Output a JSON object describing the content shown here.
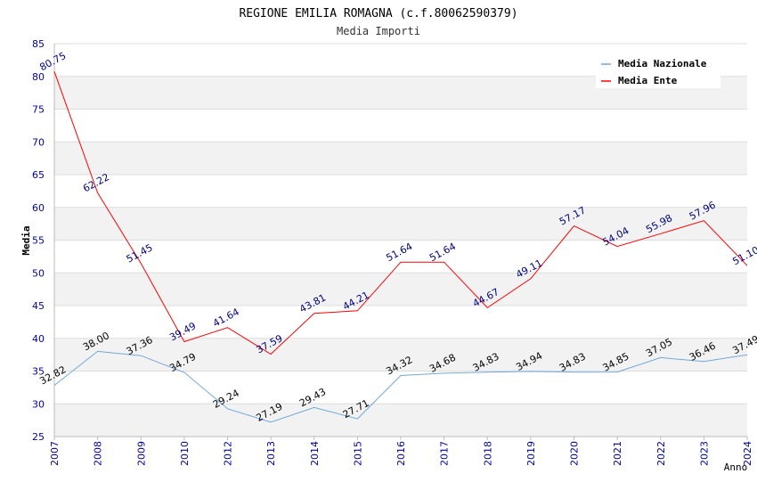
{
  "chart_data": {
    "type": "line",
    "title": "REGIONE EMILIA ROMAGNA (c.f.80062590379)",
    "subtitle": "Media Importi",
    "xlabel": "Anno",
    "ylabel": "Media",
    "ylim": [
      25,
      85
    ],
    "yticks": [
      25,
      30,
      35,
      40,
      45,
      50,
      55,
      60,
      65,
      70,
      75,
      80,
      85
    ],
    "categories": [
      "2007",
      "2008",
      "2009",
      "2010",
      "2012",
      "2013",
      "2014",
      "2015",
      "2016",
      "2017",
      "2018",
      "2019",
      "2020",
      "2021",
      "2022",
      "2023",
      "2024"
    ],
    "legend_position": "top-right",
    "grid": true,
    "series": [
      {
        "name": "Media Nazionale",
        "color": "#6fa8dc",
        "label_color": "#000000",
        "values": [
          32.82,
          38.0,
          37.36,
          34.79,
          29.24,
          27.19,
          29.43,
          27.71,
          34.32,
          34.68,
          34.83,
          34.94,
          34.83,
          34.85,
          37.05,
          36.46,
          37.49
        ],
        "labels": [
          "32.82",
          "38.00",
          "37.36",
          "34.79",
          "29.24",
          "27.19",
          "29.43",
          "27.71",
          "34.32",
          "34.68",
          "34.83",
          "34.94",
          "34.83",
          "34.85",
          "37.05",
          "36.46",
          "37.49"
        ]
      },
      {
        "name": "Media Ente",
        "color": "#ff0000",
        "label_color": "#000080",
        "values": [
          80.75,
          62.22,
          51.45,
          39.49,
          41.64,
          37.59,
          43.81,
          44.21,
          51.64,
          51.64,
          44.67,
          49.11,
          57.17,
          54.04,
          55.98,
          57.96,
          51.1
        ],
        "labels": [
          "80.75",
          "62.22",
          "51.45",
          "39.49",
          "41.64",
          "37.59",
          "43.81",
          "44.21",
          "51.64",
          "51.64",
          "44.67",
          "49.11",
          "57.17",
          "54.04",
          "55.98",
          "57.96",
          "51.10"
        ]
      }
    ]
  },
  "colors": {
    "tick_text": "#0000aa",
    "band_gray": "#f2f2f2",
    "grid_line": "#dddddd"
  }
}
